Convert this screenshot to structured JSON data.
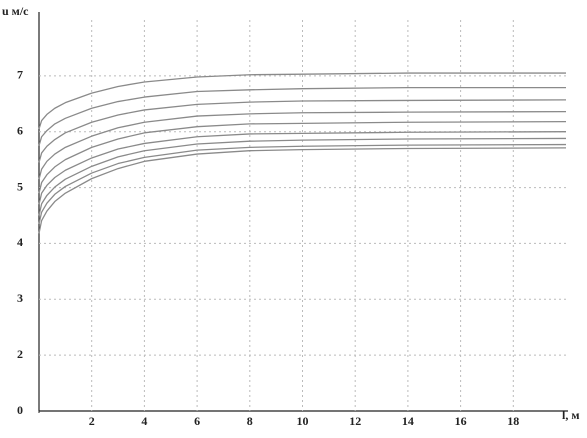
{
  "chart_data": {
    "type": "line",
    "y_label": "u м/с",
    "x_label": "l, м",
    "x": [
      0,
      0.1,
      0.3,
      0.6,
      1,
      2,
      3,
      4,
      6,
      8,
      10,
      14,
      20
    ],
    "series": [
      {
        "color": "#8a8a8a",
        "values": [
          6.05,
          6.2,
          6.31,
          6.42,
          6.52,
          6.69,
          6.81,
          6.89,
          6.98,
          7.02,
          7.03,
          7.05,
          7.05
        ]
      },
      {
        "color": "#8a8a8a",
        "values": [
          5.75,
          5.91,
          6.02,
          6.14,
          6.24,
          6.42,
          6.54,
          6.62,
          6.72,
          6.75,
          6.77,
          6.79,
          6.79
        ]
      },
      {
        "color": "#8a8a8a",
        "values": [
          5.45,
          5.62,
          5.74,
          5.86,
          5.98,
          6.17,
          6.3,
          6.39,
          6.49,
          6.53,
          6.55,
          6.56,
          6.57
        ]
      },
      {
        "color": "#8a8a8a",
        "values": [
          5.15,
          5.33,
          5.47,
          5.6,
          5.72,
          5.92,
          6.07,
          6.17,
          6.28,
          6.32,
          6.34,
          6.35,
          6.36
        ]
      },
      {
        "color": "#8a8a8a",
        "values": [
          4.9,
          5.09,
          5.23,
          5.37,
          5.5,
          5.72,
          5.87,
          5.98,
          6.09,
          6.14,
          6.15,
          6.17,
          6.18
        ]
      },
      {
        "color": "#8a8a8a",
        "values": [
          4.7,
          4.9,
          5.04,
          5.18,
          5.31,
          5.53,
          5.69,
          5.79,
          5.91,
          5.96,
          5.97,
          5.99,
          6.0
        ]
      },
      {
        "color": "#8a8a8a",
        "values": [
          4.5,
          4.71,
          4.86,
          5.01,
          5.15,
          5.38,
          5.55,
          5.66,
          5.78,
          5.83,
          5.85,
          5.87,
          5.88
        ]
      },
      {
        "color": "#8a8a8a",
        "values": [
          4.35,
          4.56,
          4.72,
          4.88,
          5.02,
          5.26,
          5.43,
          5.54,
          5.67,
          5.72,
          5.74,
          5.76,
          5.77
        ]
      },
      {
        "color": "#8a8a8a",
        "values": [
          4.18,
          4.41,
          4.58,
          4.75,
          4.9,
          5.16,
          5.34,
          5.47,
          5.6,
          5.66,
          5.68,
          5.7,
          5.71
        ]
      }
    ],
    "xlim": [
      0,
      20
    ],
    "ylim": [
      1,
      8
    ],
    "xticks": [
      0,
      2,
      4,
      6,
      8,
      10,
      12,
      14,
      16,
      18
    ],
    "yticks": [
      2,
      3,
      4,
      5,
      6,
      7
    ],
    "grid": true
  }
}
